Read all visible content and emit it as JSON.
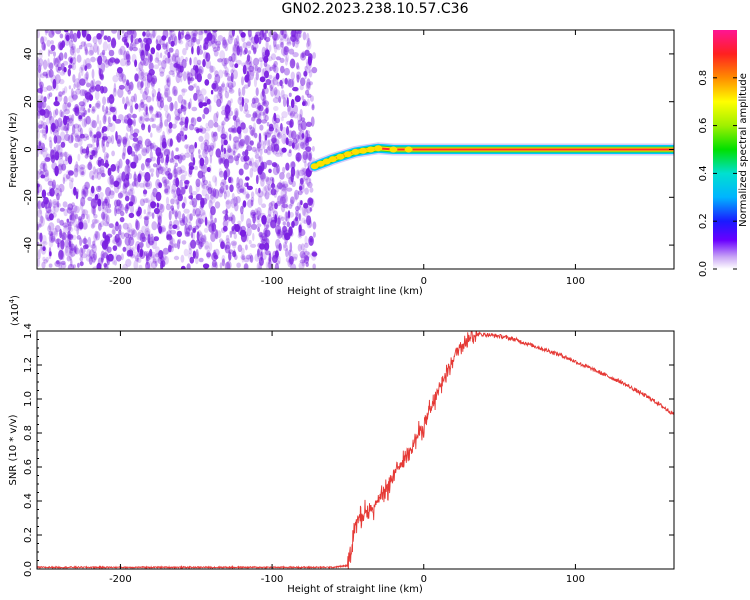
{
  "title": "GN02.2023.238.10.57.C36",
  "colors": {
    "noise": "#7a1fe0",
    "signal_line": "#e53935",
    "ridge_core": "#ff2a2a",
    "ridge_mid": "#ffe000",
    "ridge_outer": "#00c8ff",
    "ridge_green": "#30d030",
    "snr_line": "#e53935",
    "axis": "#000000"
  },
  "chart_data": [
    {
      "type": "heatmap",
      "xlabel": "Height of straight line (km)",
      "ylabel": "Frequency (Hz)",
      "xlim": [
        -255,
        165
      ],
      "ylim": [
        -50,
        50
      ],
      "xticks": [
        -200,
        -100,
        0,
        100
      ],
      "yticks": [
        40,
        20,
        0,
        -20,
        -40
      ],
      "noise_region_x": [
        -255,
        -72
      ],
      "ridge": [
        {
          "x": -72,
          "y": -7
        },
        {
          "x": -68,
          "y": -6
        },
        {
          "x": -64,
          "y": -5
        },
        {
          "x": -60,
          "y": -4
        },
        {
          "x": -55,
          "y": -3
        },
        {
          "x": -50,
          "y": -2
        },
        {
          "x": -45,
          "y": -1
        },
        {
          "x": -40,
          "y": -0.5
        },
        {
          "x": -35,
          "y": 0
        },
        {
          "x": -30,
          "y": 0.5
        },
        {
          "x": -20,
          "y": 0
        },
        {
          "x": -10,
          "y": 0
        },
        {
          "x": 0,
          "y": 0
        },
        {
          "x": 10,
          "y": 0
        },
        {
          "x": 50,
          "y": 0
        },
        {
          "x": 100,
          "y": 0
        },
        {
          "x": 165,
          "y": 0
        }
      ],
      "colorbar": {
        "label": "Normalized spectral amplitude",
        "ticks": [
          "0.0",
          "0.2",
          "0.4",
          "0.6",
          "0.8"
        ],
        "range": [
          0,
          1
        ]
      }
    },
    {
      "type": "line",
      "xlabel": "Height of straight line (km)",
      "ylabel": "SNR (10 * v/v)",
      "scale_label": "(x10",
      "scale_exp": "4",
      "scale_close": ")",
      "xlim": [
        -255,
        165
      ],
      "ylim": [
        0,
        1.4
      ],
      "xticks": [
        -200,
        -100,
        0,
        100
      ],
      "yticks": [
        "0.0",
        "0.2",
        "0.4",
        "0.6",
        "0.8",
        "1.0",
        "1.2",
        "1.4"
      ],
      "series": [
        {
          "x": [
            -255,
            -200,
            -150,
            -100,
            -60,
            -50,
            -48,
            -45,
            -40,
            -35,
            -30,
            -25,
            -20,
            -15,
            -10,
            -5,
            0,
            5,
            10,
            15,
            20,
            25,
            30,
            35,
            40,
            50,
            60,
            70,
            80,
            90,
            100,
            110,
            120,
            130,
            140,
            150,
            160,
            165
          ],
          "y": [
            0.01,
            0.01,
            0.01,
            0.01,
            0.01,
            0.02,
            0.08,
            0.28,
            0.33,
            0.35,
            0.4,
            0.45,
            0.55,
            0.62,
            0.7,
            0.77,
            0.85,
            0.94,
            1.05,
            1.15,
            1.25,
            1.32,
            1.36,
            1.38,
            1.38,
            1.37,
            1.35,
            1.32,
            1.29,
            1.26,
            1.22,
            1.18,
            1.14,
            1.1,
            1.05,
            1.0,
            0.94,
            0.91
          ]
        }
      ]
    }
  ]
}
